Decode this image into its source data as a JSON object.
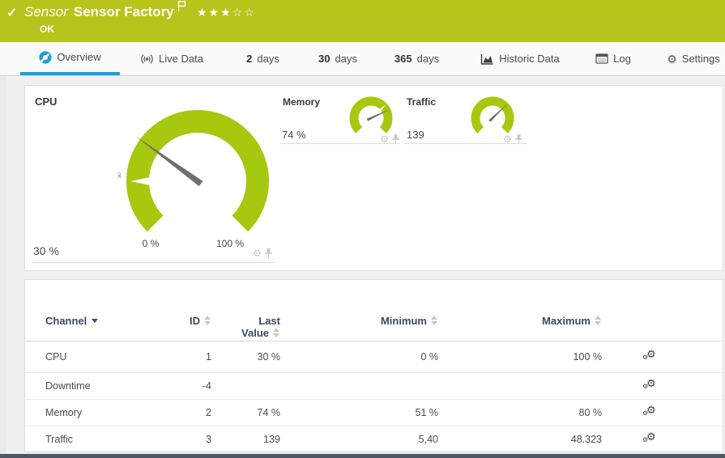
{
  "header": {
    "check_icon": "✓",
    "type_label": "Sensor",
    "title": "Sensor Factory",
    "status": "OK",
    "rating": {
      "filled": 3,
      "total": 5
    },
    "colors": {
      "bg": "#b7c41c",
      "text": "#ffffff"
    }
  },
  "tabs": [
    {
      "key": "overview",
      "label": "Overview",
      "icon": "gauge-icon",
      "active": true
    },
    {
      "key": "live-data",
      "label": "Live Data",
      "icon": "live-icon",
      "active": false
    },
    {
      "key": "2-days",
      "num": "2",
      "label": "days",
      "active": false
    },
    {
      "key": "30-days",
      "num": "30",
      "label": "days",
      "active": false
    },
    {
      "key": "365-days",
      "num": "365",
      "label": "days",
      "active": false
    },
    {
      "key": "historic-data",
      "label": "Historic Data",
      "icon": "chart-icon",
      "active": false
    },
    {
      "key": "log",
      "label": "Log",
      "icon": "log-icon",
      "active": false
    },
    {
      "key": "settings",
      "label": "Settings",
      "icon": "gear-icon",
      "active": false
    }
  ],
  "gauges": [
    {
      "name": "CPU",
      "value_label": "30 %",
      "percent": 30,
      "min_label": "0 %",
      "max_label": "100 %",
      "avg_marker": "x̄",
      "size": "large"
    },
    {
      "name": "Memory",
      "value_label": "74 %",
      "percent": 74,
      "size": "small"
    },
    {
      "name": "Traffic",
      "value_label": "139",
      "percent": 67,
      "size": "small"
    }
  ],
  "chart_data": [
    {
      "type": "gauge",
      "title": "CPU",
      "value": 30,
      "unit": "%",
      "min": 0,
      "max": 100,
      "axis_labels": [
        "0 %",
        "100 %"
      ]
    },
    {
      "type": "gauge",
      "title": "Memory",
      "value": 74,
      "unit": "%"
    },
    {
      "type": "gauge",
      "title": "Traffic",
      "value": 139
    }
  ],
  "table": {
    "header": {
      "channel": "Channel",
      "id": "ID",
      "last_line1": "Last",
      "last_line2": "Value",
      "minimum": "Minimum",
      "maximum": "Maximum"
    },
    "rows": [
      {
        "channel": "CPU",
        "id": "1",
        "last": "30 %",
        "min": "0 %",
        "max": "100 %"
      },
      {
        "channel": "Downtime",
        "id": "-4",
        "last": "",
        "min": "",
        "max": ""
      },
      {
        "channel": "Memory",
        "id": "2",
        "last": "74 %",
        "min": "51 %",
        "max": "80 %"
      },
      {
        "channel": "Traffic",
        "id": "3",
        "last": "139",
        "min": "5,40",
        "max": "48.323"
      }
    ]
  },
  "colors": {
    "header_green": "#b7c41c",
    "gauge_green": "#a6c80e",
    "needle_gray": "#6f6f6f",
    "accent_blue": "#1f9dd9",
    "table_header_text": "#3b4a63",
    "bottom_bar": "#4c5866"
  }
}
